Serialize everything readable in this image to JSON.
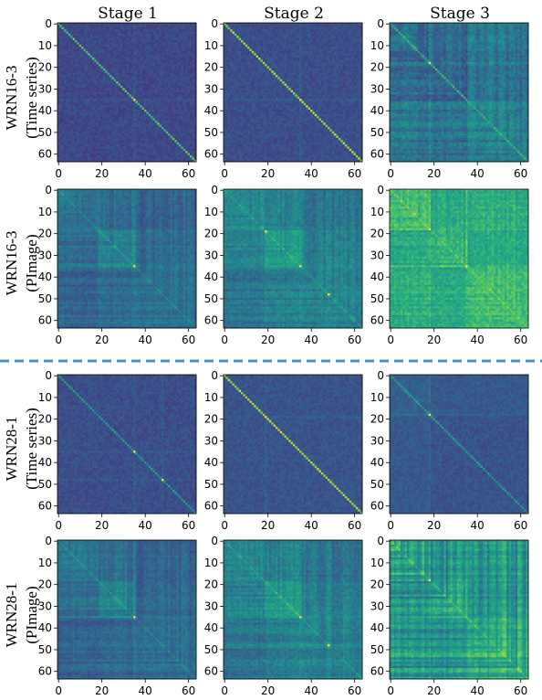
{
  "column_titles": [
    "Stage 1",
    "Stage 2",
    "Stage 3"
  ],
  "row_labels": [
    {
      "model": "WRN16-3",
      "input": "(Time series)"
    },
    {
      "model": "WRN16-3",
      "input": "(PImage)"
    },
    {
      "model": "WRN28-1",
      "input": "(Time series)"
    },
    {
      "model": "WRN28-1",
      "input": "(PImage)"
    }
  ],
  "colors": {
    "viridis": [
      "#440154",
      "#472c7a",
      "#3b518b",
      "#2c718e",
      "#21908d",
      "#27ad81",
      "#5cc863",
      "#aadc32",
      "#fde725"
    ],
    "separator": "#4a90c8"
  },
  "chart_data": {
    "type": "heatmap",
    "description_of_values": "64x64 channel-similarity matrices, symmetric, bright diagonal",
    "size": 64,
    "x_ticks": [
      0,
      20,
      40,
      60
    ],
    "y_ticks": [
      0,
      10,
      20,
      30,
      40,
      50,
      60
    ],
    "colormap": "viridis",
    "panels": [
      {
        "row": 0,
        "col": 0,
        "pattern": "diagonal",
        "base": 0.22,
        "noise": 0.05,
        "diag": 0.72,
        "blocks": [],
        "bright": [
          35
        ]
      },
      {
        "row": 0,
        "col": 1,
        "pattern": "diagonal",
        "base": 0.24,
        "noise": 0.05,
        "diag": 0.85,
        "blocks": [],
        "bright": [
          35
        ]
      },
      {
        "row": 0,
        "col": 2,
        "pattern": "diagonal_stripes",
        "base": 0.3,
        "noise": 0.07,
        "diag": 0.65,
        "blocks": [
          [
            0,
            19,
            0.05
          ],
          [
            36,
            64,
            0.12
          ]
        ],
        "bright": [
          18
        ]
      },
      {
        "row": 1,
        "col": 0,
        "pattern": "blocks",
        "base": 0.3,
        "noise": 0.05,
        "diag": 0.1,
        "blocks": [
          [
            0,
            19,
            0.08
          ],
          [
            19,
            36,
            0.14
          ],
          [
            36,
            64,
            0.06
          ]
        ],
        "bright": [
          35
        ]
      },
      {
        "row": 1,
        "col": 1,
        "pattern": "blocks",
        "base": 0.34,
        "noise": 0.06,
        "diag": 0.1,
        "blocks": [
          [
            0,
            19,
            0.12
          ],
          [
            19,
            36,
            0.2
          ],
          [
            36,
            64,
            0.1
          ]
        ],
        "bright": [
          19,
          35,
          48
        ]
      },
      {
        "row": 1,
        "col": 2,
        "pattern": "blocks",
        "base": 0.5,
        "noise": 0.07,
        "diag": 0.1,
        "blocks": [
          [
            0,
            19,
            0.18
          ],
          [
            19,
            36,
            0.15
          ],
          [
            36,
            64,
            0.2
          ]
        ],
        "bright": [
          18,
          35
        ]
      },
      {
        "row": 2,
        "col": 0,
        "pattern": "diagonal",
        "base": 0.24,
        "noise": 0.05,
        "diag": 0.55,
        "blocks": [],
        "bright": [
          35,
          48
        ]
      },
      {
        "row": 2,
        "col": 1,
        "pattern": "diagonal",
        "base": 0.26,
        "noise": 0.05,
        "diag": 0.88,
        "blocks": [],
        "bright": [
          19
        ]
      },
      {
        "row": 2,
        "col": 2,
        "pattern": "diagonal",
        "base": 0.26,
        "noise": 0.05,
        "diag": 0.55,
        "blocks": [
          [
            0,
            19,
            0.05
          ]
        ],
        "bright": [
          18
        ]
      },
      {
        "row": 3,
        "col": 0,
        "pattern": "blocks",
        "base": 0.3,
        "noise": 0.05,
        "diag": 0.1,
        "blocks": [
          [
            0,
            19,
            0.1
          ],
          [
            19,
            36,
            0.14
          ],
          [
            36,
            64,
            0.06
          ]
        ],
        "bright": [
          35
        ]
      },
      {
        "row": 3,
        "col": 1,
        "pattern": "blocks",
        "base": 0.34,
        "noise": 0.06,
        "diag": 0.1,
        "blocks": [
          [
            0,
            19,
            0.12
          ],
          [
            19,
            36,
            0.2
          ],
          [
            36,
            64,
            0.1
          ]
        ],
        "bright": [
          35,
          48
        ]
      },
      {
        "row": 3,
        "col": 2,
        "pattern": "blocks_stripes",
        "base": 0.42,
        "noise": 0.06,
        "diag": 0.1,
        "blocks": [
          [
            0,
            19,
            0.15
          ],
          [
            19,
            36,
            0.12
          ],
          [
            36,
            64,
            0.18
          ]
        ],
        "bright": [
          18
        ]
      }
    ]
  }
}
